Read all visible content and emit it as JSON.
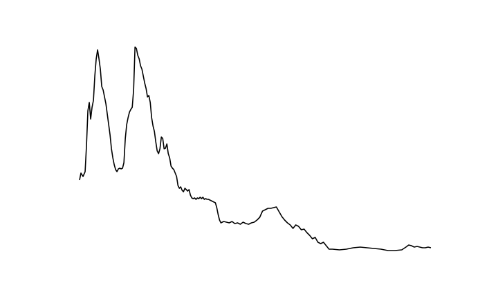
{
  "chart_data": {
    "type": "line",
    "color": "#000000",
    "x": [
      0,
      2,
      5,
      8,
      10,
      12,
      14,
      16,
      18,
      20,
      22,
      24,
      26,
      28,
      30,
      32,
      34,
      36,
      38,
      40,
      42,
      44,
      46,
      48,
      50,
      52,
      54,
      56,
      58,
      60,
      62,
      64,
      66,
      68,
      70,
      72,
      74,
      76,
      78,
      80,
      82,
      84,
      86,
      88,
      90,
      92,
      94,
      96,
      98,
      100,
      102,
      104,
      106,
      108,
      110,
      112,
      114,
      116,
      118,
      120,
      122,
      124,
      126,
      128,
      130,
      132,
      134,
      136,
      138,
      140,
      142,
      144,
      146,
      148,
      150,
      152,
      154,
      156,
      158,
      160,
      162,
      164,
      166,
      168,
      170,
      172,
      174,
      176,
      178,
      180,
      182,
      184,
      186,
      188,
      190,
      192,
      194,
      196,
      198,
      200,
      202,
      204,
      208,
      212,
      216,
      220,
      224,
      228,
      232,
      236,
      240,
      244,
      248,
      252,
      256,
      260,
      264,
      268,
      272,
      276,
      280,
      284,
      288,
      292,
      296,
      300,
      304,
      308,
      312,
      316,
      320,
      324,
      328,
      332,
      336,
      340,
      344,
      348,
      352,
      356,
      360,
      365,
      375,
      385,
      395,
      405,
      415,
      425,
      435,
      445,
      455,
      465,
      471,
      475,
      479,
      483,
      487,
      491,
      495,
      499,
      503,
      507
    ],
    "values": [
      124,
      134,
      129,
      136,
      174,
      224,
      236,
      212,
      229,
      239,
      274,
      299,
      312,
      299,
      284,
      259,
      254,
      244,
      234,
      219,
      204,
      189,
      169,
      156,
      146,
      139,
      136,
      140,
      141,
      140,
      141,
      149,
      184,
      204,
      214,
      222,
      226,
      229,
      254,
      316,
      314,
      304,
      299,
      289,
      284,
      274,
      264,
      256,
      244,
      246,
      236,
      214,
      202,
      194,
      179,
      166,
      162,
      169,
      186,
      184,
      169,
      170,
      176,
      162,
      156,
      144,
      141,
      139,
      134,
      129,
      116,
      112,
      114,
      109,
      107,
      112,
      110,
      108,
      110,
      102,
      98,
      97,
      98,
      96,
      98,
      97,
      99,
      97,
      99,
      96,
      97,
      96,
      96,
      95,
      94,
      93,
      92,
      91,
      84,
      74,
      66,
      62,
      64,
      63,
      62,
      64,
      61,
      62,
      60,
      63,
      61,
      60,
      62,
      63,
      66,
      70,
      79,
      81,
      83,
      83,
      84,
      85,
      78,
      71,
      66,
      62,
      59,
      54,
      59,
      57,
      52,
      53,
      48,
      44,
      39,
      41,
      34,
      32,
      34,
      29,
      24,
      24,
      23,
      24,
      26,
      27,
      26,
      25,
      24,
      22,
      22,
      23,
      27,
      30,
      29,
      27,
      28,
      27,
      26,
      26,
      27,
      26
    ],
    "xlim": [
      -25,
      532
    ],
    "ylim": [
      0,
      332
    ],
    "line_width": 1.6
  }
}
